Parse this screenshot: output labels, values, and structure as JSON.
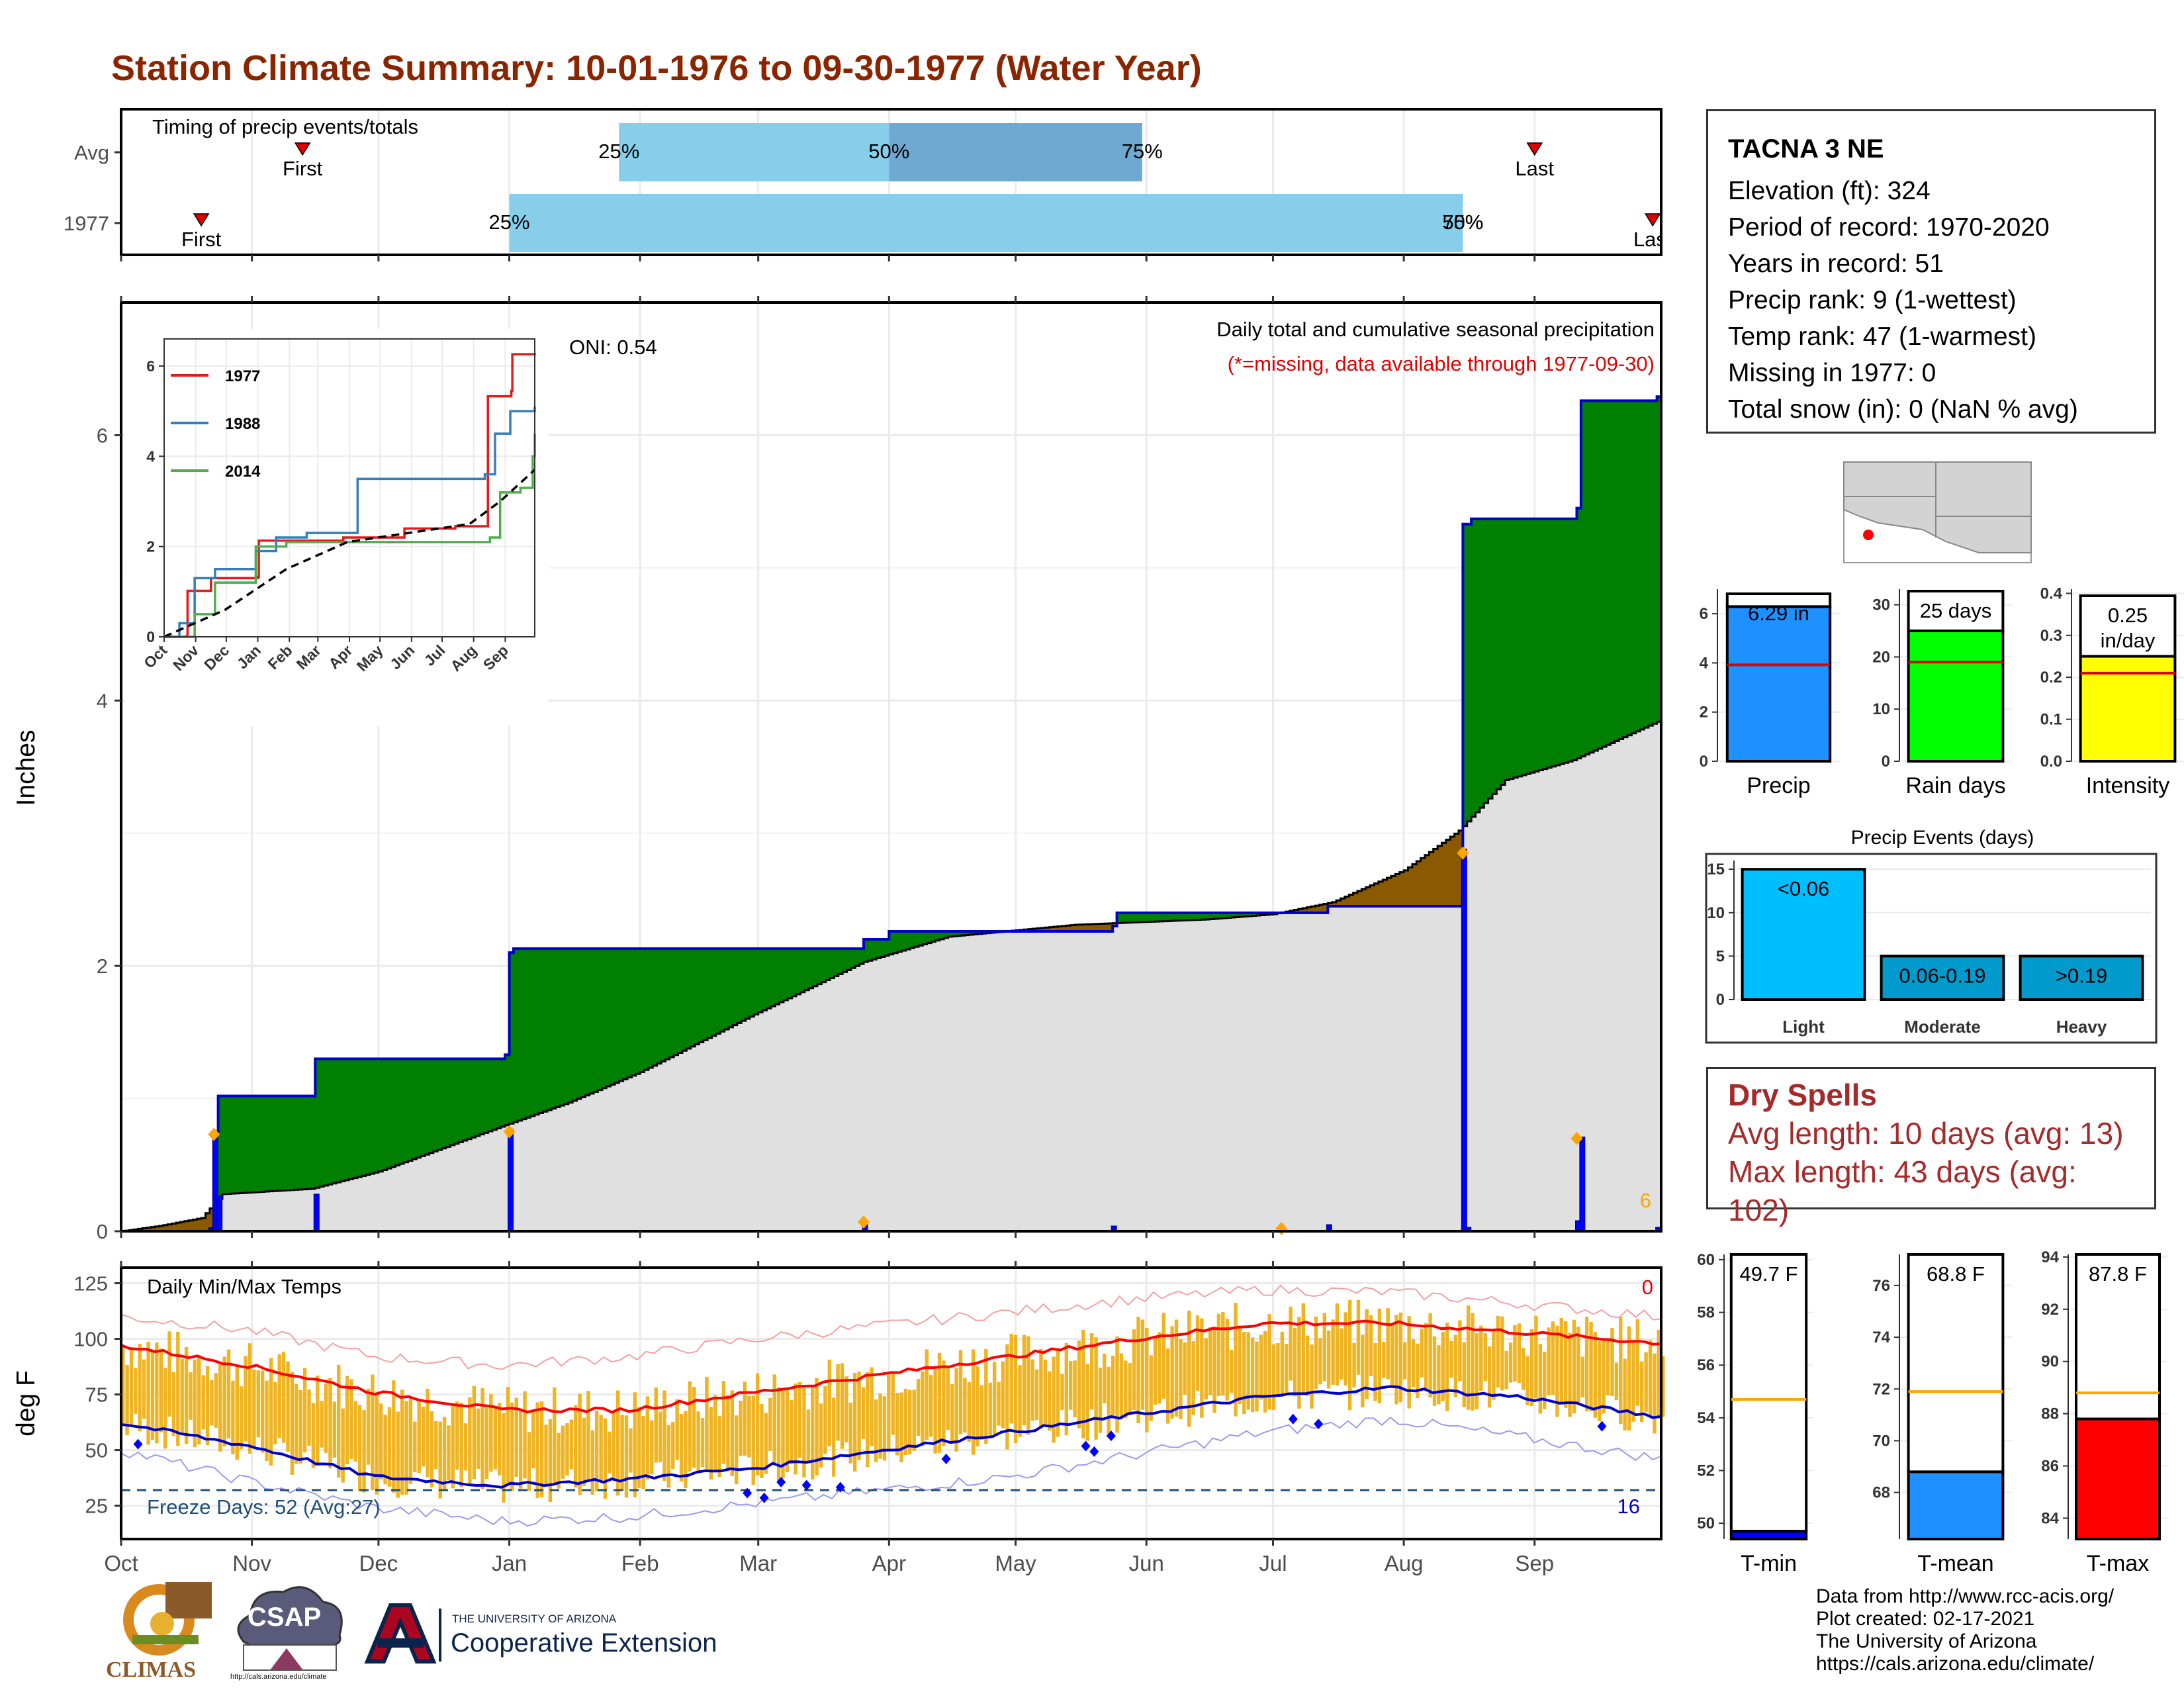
{
  "page_title": "Station Climate Summary: 10-01-1976 to 09-30-1977 (Water Year)",
  "station": {
    "name": "TACNA 3 NE",
    "lines": [
      "Elevation (ft): 324",
      "Period of record: 1970-2020",
      "Years in record: 51",
      "Precip rank: 9 (1-wettest)",
      "Temp rank: 47 (1-warmest)",
      "Missing in 1977: 0",
      "Total snow (in): 0 (NaN % avg)"
    ]
  },
  "dry_spells": {
    "title": "Dry Spells",
    "avg_length": "Avg length: 10 days (avg: 13)",
    "max_length": "Max length: 43 days (avg: 102)"
  },
  "footer": {
    "lines": [
      "Data from http://www.rcc-acis.org/",
      "Plot created: 02-17-2021",
      "The University of Arizona",
      "https://cals.arizona.edu/climate/"
    ]
  },
  "logos": {
    "climas": "CLIMAS",
    "csap": "CSAP",
    "csap_url": "http://cals.arizona.edu/climate",
    "ua_small": "THE UNIVERSITY OF ARIZONA",
    "ua_large": "Cooperative Extension"
  },
  "colors": {
    "title": "#8b2500",
    "above_avg": "#008000",
    "below_avg": "#8b5a00",
    "normal_fill": "#e0e0e0",
    "cum_line": "#0000cd",
    "daily_bar": "#0000ff",
    "temp_bar": "#eeb422",
    "tmax_line": "#ff0000",
    "tmin_line": "#0000cd",
    "timing_light": "#87ceeb",
    "timing_dark": "#6fa8d0"
  },
  "chart_data": [
    {
      "id": "timing",
      "type": "bar",
      "title": "Timing of precip events/totals",
      "rows": [
        "Avg",
        "1977"
      ],
      "avg": {
        "first": "First",
        "last": "Last",
        "first_date": "1976-11-13",
        "last_date": "1977-09-01",
        "p25": "1977-01-27",
        "p50": "1977-04-01",
        "p75": "1977-05-31"
      },
      "y1977": {
        "first": "First",
        "last": "Last",
        "first_date": "1976-10-20",
        "last_date": "1977-09-29",
        "p25": "1977-01-01",
        "p50": "1977-08-15",
        "p75": "1977-08-15"
      },
      "pct_labels": [
        "25%",
        "50%",
        "75%"
      ]
    },
    {
      "id": "precip",
      "type": "area",
      "title": "Daily total and cumulative seasonal precipitation",
      "subtitle": "(*=missing, data available through 1977-09-30)",
      "oni": "ONI: 0.54",
      "ylabel": "Inches",
      "ylim": [
        0,
        7
      ],
      "yticks": [
        0,
        2,
        4,
        6
      ],
      "months": [
        "Oct",
        "Nov",
        "Dec",
        "Jan",
        "Feb",
        "Mar",
        "Apr",
        "May",
        "Jun",
        "Jul",
        "Aug",
        "Sep"
      ],
      "count_label": "6",
      "cumulative": [
        [
          "1976-10-01",
          0
        ],
        [
          "1976-10-22",
          0.02
        ],
        [
          "1976-10-23",
          0.75
        ],
        [
          "1976-10-24",
          1.02
        ],
        [
          "1976-11-15",
          1.02
        ],
        [
          "1976-11-16",
          1.3
        ],
        [
          "1976-12-31",
          1.33
        ],
        [
          "1977-01-01",
          2.1
        ],
        [
          "1977-01-02",
          2.13
        ],
        [
          "1977-03-26",
          2.2
        ],
        [
          "1977-04-01",
          2.26
        ],
        [
          "1977-05-24",
          2.3
        ],
        [
          "1977-05-25",
          2.4
        ],
        [
          "1977-07-01",
          2.4
        ],
        [
          "1977-07-14",
          2.45
        ],
        [
          "1977-08-14",
          2.45
        ],
        [
          "1977-08-15",
          5.33
        ],
        [
          "1977-08-17",
          5.37
        ],
        [
          "1977-09-10",
          5.37
        ],
        [
          "1977-09-11",
          5.45
        ],
        [
          "1977-09-12",
          6.26
        ],
        [
          "1977-09-29",
          6.26
        ],
        [
          "1977-09-30",
          6.29
        ]
      ],
      "normal": [
        [
          "1976-10-01",
          0
        ],
        [
          "1976-10-10",
          0.04
        ],
        [
          "1976-10-20",
          0.1
        ],
        [
          "1976-10-25",
          0.28
        ],
        [
          "1976-11-15",
          0.32
        ],
        [
          "1976-12-01",
          0.45
        ],
        [
          "1976-12-31",
          0.8
        ],
        [
          "1977-01-15",
          0.97
        ],
        [
          "1977-02-01",
          1.2
        ],
        [
          "1977-03-01",
          1.65
        ],
        [
          "1977-03-26",
          2.03
        ],
        [
          "1977-04-15",
          2.22
        ],
        [
          "1977-05-15",
          2.31
        ],
        [
          "1977-06-15",
          2.35
        ],
        [
          "1977-07-01",
          2.39
        ],
        [
          "1977-07-15",
          2.48
        ],
        [
          "1977-08-01",
          2.72
        ],
        [
          "1977-08-14",
          3.02
        ],
        [
          "1977-08-25",
          3.4
        ],
        [
          "1977-09-10",
          3.55
        ],
        [
          "1977-09-30",
          3.84
        ]
      ],
      "daily_precip": [
        [
          "1976-10-22",
          0.02
        ],
        [
          "1976-10-23",
          0.73
        ],
        [
          "1976-10-24",
          0.27
        ],
        [
          "1976-11-16",
          0.28
        ],
        [
          "1977-01-01",
          0.77
        ],
        [
          "1977-03-26",
          0.07
        ],
        [
          "1977-05-24",
          0.04
        ],
        [
          "1977-07-14",
          0.05
        ],
        [
          "1977-08-15",
          2.88
        ],
        [
          "1977-08-16",
          0.03
        ],
        [
          "1977-09-11",
          0.08
        ],
        [
          "1977-09-12",
          0.71
        ],
        [
          "1977-09-30",
          0.03
        ]
      ],
      "dates_outline": [
        "1976-10-23",
        "1977-01-01",
        "1977-03-26",
        "1977-07-03",
        "1977-08-15",
        "1977-09-11"
      ],
      "dates_outline_y": [
        0.73,
        0.75,
        0.07,
        0.02,
        2.85,
        0.7
      ]
    },
    {
      "id": "inset",
      "type": "line",
      "xticks": [
        "Oct",
        "Nov",
        "Dec",
        "Jan",
        "Feb",
        "Mar",
        "Apr",
        "May",
        "Jun",
        "Jul",
        "Aug",
        "Sep"
      ],
      "yticks": [
        0,
        2,
        4,
        6
      ],
      "ylim": [
        0,
        6.6
      ],
      "series": [
        {
          "name": "1977",
          "color": "#e41a1c",
          "values": [
            [
              0,
              0
            ],
            [
              22,
              0.02
            ],
            [
              23,
              1.02
            ],
            [
              46,
              1.3
            ],
            [
              92,
              1.33
            ],
            [
              93,
              2.13
            ],
            [
              176,
              2.2
            ],
            [
              236,
              2.4
            ],
            [
              286,
              2.45
            ],
            [
              318,
              5.33
            ],
            [
              341,
              5.45
            ],
            [
              342,
              6.26
            ],
            [
              364,
              6.29
            ]
          ]
        },
        {
          "name": "1988",
          "color": "#377eb8",
          "values": [
            [
              0,
              0
            ],
            [
              15,
              0.3
            ],
            [
              30,
              1.3
            ],
            [
              50,
              1.5
            ],
            [
              90,
              1.9
            ],
            [
              110,
              2.2
            ],
            [
              140,
              2.3
            ],
            [
              190,
              3.5
            ],
            [
              315,
              3.6
            ],
            [
              325,
              4.5
            ],
            [
              340,
              5.0
            ],
            [
              364,
              5.1
            ]
          ]
        },
        {
          "name": "2014",
          "color": "#4daf4a",
          "values": [
            [
              0,
              0
            ],
            [
              30,
              0.5
            ],
            [
              50,
              1.2
            ],
            [
              80,
              1.2
            ],
            [
              90,
              2.0
            ],
            [
              120,
              2.1
            ],
            [
              190,
              2.1
            ],
            [
              320,
              2.2
            ],
            [
              330,
              3.2
            ],
            [
              350,
              3.3
            ],
            [
              362,
              4.0
            ],
            [
              364,
              4.5
            ]
          ]
        },
        {
          "name": "",
          "color": "#000000",
          "dashed": true,
          "values": [
            [
              0,
              0
            ],
            [
              60,
              0.6
            ],
            [
              120,
              1.5
            ],
            [
              180,
              2.1
            ],
            [
              240,
              2.3
            ],
            [
              300,
              2.5
            ],
            [
              330,
              3.0
            ],
            [
              364,
              3.7
            ]
          ]
        }
      ]
    },
    {
      "id": "temps",
      "type": "bar",
      "title": "Daily Min/Max Temps",
      "ylabel": "deg F",
      "ylim": [
        10,
        132
      ],
      "yticks": [
        25,
        50,
        75,
        100,
        125
      ],
      "freeze_label": "Freeze Days: 52 (Avg:27)",
      "freeze_line": 32,
      "count_hot": "0",
      "count_freeze": "16",
      "months": [
        "Oct",
        "Nov",
        "Dec",
        "Jan",
        "Feb",
        "Mar",
        "Apr",
        "May",
        "Jun",
        "Jul",
        "Aug",
        "Sep"
      ],
      "normal_max": [
        [
          0,
          97
        ],
        [
          30,
          88
        ],
        [
          60,
          76
        ],
        [
          90,
          68
        ],
        [
          120,
          68
        ],
        [
          150,
          76
        ],
        [
          180,
          84
        ],
        [
          210,
          92
        ],
        [
          240,
          100
        ],
        [
          270,
          107
        ],
        [
          300,
          107
        ],
        [
          330,
          103
        ],
        [
          364,
          98
        ]
      ],
      "normal_min": [
        [
          0,
          62
        ],
        [
          30,
          52
        ],
        [
          60,
          38
        ],
        [
          90,
          34
        ],
        [
          120,
          37
        ],
        [
          150,
          42
        ],
        [
          180,
          50
        ],
        [
          210,
          58
        ],
        [
          240,
          66
        ],
        [
          270,
          74
        ],
        [
          300,
          78
        ],
        [
          330,
          74
        ],
        [
          364,
          65
        ]
      ],
      "record_max": [
        [
          0,
          110
        ],
        [
          30,
          104
        ],
        [
          60,
          92
        ],
        [
          90,
          88
        ],
        [
          120,
          92
        ],
        [
          150,
          100
        ],
        [
          180,
          106
        ],
        [
          210,
          112
        ],
        [
          240,
          118
        ],
        [
          270,
          122
        ],
        [
          300,
          121
        ],
        [
          330,
          116
        ],
        [
          364,
          110
        ]
      ],
      "record_min": [
        [
          0,
          50
        ],
        [
          30,
          36
        ],
        [
          60,
          24
        ],
        [
          90,
          18
        ],
        [
          120,
          20
        ],
        [
          150,
          26
        ],
        [
          180,
          32
        ],
        [
          210,
          38
        ],
        [
          240,
          48
        ],
        [
          270,
          58
        ],
        [
          300,
          64
        ],
        [
          330,
          56
        ],
        [
          364,
          46
        ]
      ]
    },
    {
      "id": "precip_bars",
      "type": "bar",
      "categories": [
        "Precip",
        "Rain days",
        "Intensity"
      ],
      "values": [
        6.29,
        25,
        0.25
      ],
      "avgs": [
        3.92,
        19,
        0.21
      ],
      "labels": [
        "6.29 in",
        "25 days",
        "0.25 in/day"
      ],
      "ylims": [
        [
          0,
          7
        ],
        [
          0,
          33
        ],
        [
          0,
          0.41
        ]
      ],
      "yticks": [
        [
          0,
          2,
          4,
          6
        ],
        [
          0,
          10,
          20,
          30
        ],
        [
          0.0,
          0.1,
          0.2,
          0.3,
          0.4
        ]
      ],
      "colors": [
        "#1e90ff",
        "#00ff00",
        "#ffff00"
      ]
    },
    {
      "id": "events",
      "type": "bar",
      "title": "Precip Events (days)",
      "categories": [
        "Light",
        "Moderate",
        "Heavy"
      ],
      "values": [
        15,
        5,
        5
      ],
      "labels": [
        "<0.06",
        "0.06-0.19",
        ">0.19"
      ],
      "ylim": [
        0,
        16
      ],
      "yticks": [
        0,
        5,
        10,
        15
      ],
      "colors": [
        "#00bfff",
        "#009acd",
        "#009acd"
      ]
    },
    {
      "id": "temp_bars",
      "type": "bar",
      "categories": [
        "T-min",
        "T-mean",
        "T-max"
      ],
      "values": [
        49.7,
        68.8,
        87.8
      ],
      "avgs": [
        54.7,
        71.9,
        88.8
      ],
      "labels": [
        "49.7 F",
        "68.8 F",
        "87.8 F"
      ],
      "ylims": [
        [
          49.4,
          60.2
        ],
        [
          66.2,
          77.2
        ],
        [
          83.2,
          94.1
        ]
      ],
      "yticks": [
        [
          50,
          52,
          54,
          56,
          58,
          60
        ],
        [
          68,
          70,
          72,
          74,
          76
        ],
        [
          84,
          86,
          88,
          90,
          92,
          94
        ]
      ],
      "colors": [
        "#0000ff",
        "#1e90ff",
        "#ff0000"
      ]
    }
  ]
}
